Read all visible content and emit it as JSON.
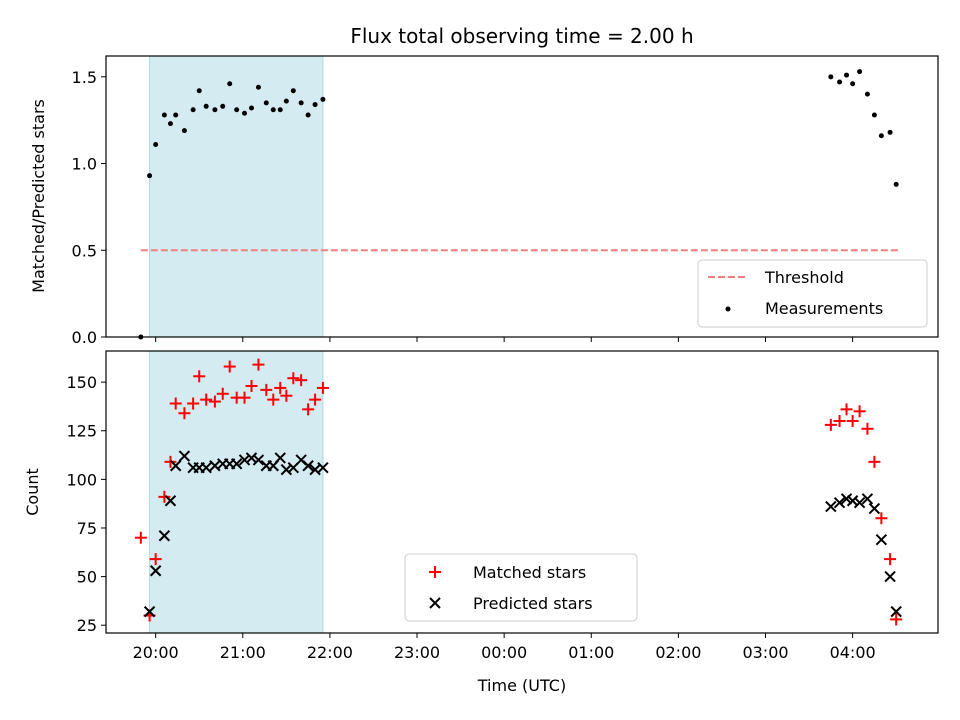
{
  "chart_data": [
    {
      "type": "scatter",
      "title": "Flux total observing time = 2.00 h",
      "xlabel": "",
      "ylabel": "Matched/Predicted stars",
      "ylim": [
        0,
        1.62
      ],
      "yticks": [
        0.0,
        0.5,
        1.0,
        1.5
      ],
      "ytick_labels": [
        "0.0",
        "0.5",
        "1.0",
        "1.5"
      ],
      "shaded_span_hours": [
        19.93,
        21.92
      ],
      "shaded_color": "#d4ebf2",
      "legend_position": "lower right",
      "threshold": {
        "name": "Threshold",
        "y": 0.5,
        "x_range_hours": [
          19.83,
          28.53
        ],
        "color": "#f08080"
      },
      "series": [
        {
          "name": "Measurements",
          "color": "#000000",
          "x_hours": [
            19.83,
            19.93,
            20.0,
            20.1,
            20.17,
            20.23,
            20.33,
            20.43,
            20.5,
            20.58,
            20.68,
            20.77,
            20.85,
            20.93,
            21.02,
            21.1,
            21.18,
            21.27,
            21.35,
            21.43,
            21.5,
            21.58,
            21.67,
            21.75,
            21.83,
            21.92,
            27.75,
            27.85,
            27.93,
            28.0,
            28.08,
            28.17,
            28.25,
            28.33,
            28.43,
            28.5
          ],
          "y": [
            0.0,
            0.93,
            1.11,
            1.28,
            1.23,
            1.28,
            1.19,
            1.31,
            1.42,
            1.33,
            1.31,
            1.33,
            1.46,
            1.31,
            1.29,
            1.32,
            1.44,
            1.35,
            1.31,
            1.31,
            1.36,
            1.42,
            1.35,
            1.28,
            1.34,
            1.37,
            1.5,
            1.47,
            1.51,
            1.46,
            1.53,
            1.4,
            1.28,
            1.16,
            1.18,
            0.88
          ]
        }
      ]
    },
    {
      "type": "scatter",
      "title": "",
      "xlabel": "Time (UTC)",
      "ylabel": "Count",
      "ylim": [
        21,
        166
      ],
      "yticks": [
        25,
        50,
        75,
        100,
        125,
        150
      ],
      "ytick_labels": [
        "25",
        "50",
        "75",
        "100",
        "125",
        "150"
      ],
      "x_range_hours": [
        19.43,
        28.98
      ],
      "xticks_hours": [
        20,
        21,
        22,
        23,
        24,
        25,
        26,
        27,
        28
      ],
      "xtick_labels": [
        "20:00",
        "21:00",
        "22:00",
        "23:00",
        "00:00",
        "01:00",
        "02:00",
        "03:00",
        "04:00"
      ],
      "shaded_span_hours": [
        19.93,
        21.92
      ],
      "legend_position": "lower center",
      "series": [
        {
          "name": "Matched stars",
          "marker": "plus",
          "color": "#ff0000",
          "x_hours": [
            19.83,
            19.93,
            20.0,
            20.1,
            20.17,
            20.23,
            20.33,
            20.43,
            20.5,
            20.58,
            20.68,
            20.77,
            20.85,
            20.93,
            21.02,
            21.1,
            21.18,
            21.27,
            21.35,
            21.43,
            21.5,
            21.58,
            21.67,
            21.75,
            21.83,
            21.92,
            27.75,
            27.85,
            27.93,
            28.0,
            28.08,
            28.17,
            28.25,
            28.33,
            28.43,
            28.5
          ],
          "y": [
            70,
            30,
            59,
            91,
            109,
            139,
            134,
            139,
            153,
            141,
            140,
            144,
            158,
            142,
            142,
            148,
            159,
            146,
            141,
            147,
            143,
            152,
            151,
            136,
            141,
            147,
            128,
            130,
            136,
            130,
            135,
            126,
            109,
            80,
            59,
            28
          ]
        },
        {
          "name": "Predicted stars",
          "marker": "x",
          "color": "#000000",
          "x_hours": [
            19.93,
            20.0,
            20.1,
            20.17,
            20.23,
            20.33,
            20.43,
            20.5,
            20.58,
            20.68,
            20.77,
            20.85,
            20.93,
            21.02,
            21.1,
            21.18,
            21.27,
            21.35,
            21.43,
            21.5,
            21.58,
            21.67,
            21.75,
            21.83,
            21.92,
            27.75,
            27.85,
            27.93,
            28.0,
            28.08,
            28.17,
            28.25,
            28.33,
            28.43,
            28.5
          ],
          "y": [
            32,
            53,
            71,
            89,
            107,
            112,
            106,
            106,
            106,
            107,
            108,
            108,
            108,
            110,
            111,
            110,
            107,
            107,
            111,
            105,
            106,
            110,
            107,
            105,
            106,
            86,
            88,
            90,
            89,
            88,
            90,
            85,
            69,
            50,
            32
          ]
        }
      ]
    }
  ]
}
